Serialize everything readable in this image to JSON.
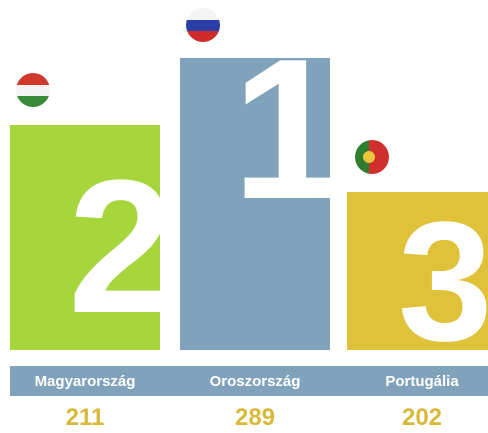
{
  "podium": [
    {
      "rank": "2",
      "country": "Magyarország",
      "value": 211
    },
    {
      "rank": "1",
      "country": "Oroszország",
      "value": 289
    },
    {
      "rank": "3",
      "country": "Portugália",
      "value": 202
    }
  ]
}
